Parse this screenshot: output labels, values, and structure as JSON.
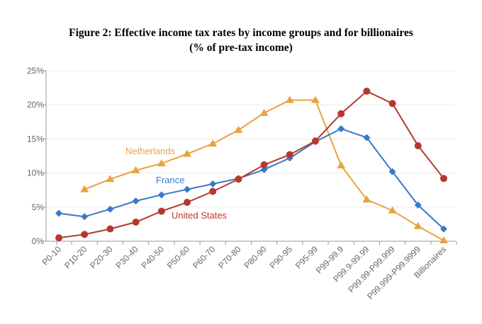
{
  "chart_data": {
    "type": "line",
    "title": "Figure 2: Effective income tax rates by income groups and for billionaires",
    "subtitle": "(% of pre-tax income)",
    "xlabel": "",
    "ylabel": "",
    "ylim": [
      0,
      25
    ],
    "yticks": [
      "0%",
      "5%",
      "10%",
      "15%",
      "20%",
      "25%"
    ],
    "grid": true,
    "legend": "inline labels",
    "categories": [
      "P0-10",
      "P10-20",
      "P20-30",
      "P30-40",
      "P40-50",
      "P50-60",
      "P60-70",
      "P70-80",
      "P80-90",
      "P90-95",
      "P95-99",
      "P99-99.9",
      "P99.9-99.99",
      "P99.99-P99.999",
      "P99.999-P99.9999",
      "Billionaires"
    ],
    "series": [
      {
        "name": "Netherlands",
        "color": "#E8A33D",
        "marker": "triangle",
        "values": [
          null,
          7.6,
          9.1,
          10.4,
          11.4,
          12.8,
          14.3,
          16.3,
          18.8,
          20.7,
          20.7,
          11.1,
          6.1,
          4.5,
          2.2,
          0.1
        ]
      },
      {
        "name": "France",
        "color": "#3A78C9",
        "marker": "diamond",
        "values": [
          4.1,
          3.6,
          4.7,
          5.9,
          6.8,
          7.6,
          8.4,
          9.2,
          10.5,
          12.2,
          14.6,
          16.5,
          15.2,
          10.2,
          5.3,
          1.8
        ]
      },
      {
        "name": "United States",
        "color": "#B5392E",
        "marker": "circle",
        "values": [
          0.5,
          1.0,
          1.8,
          2.8,
          4.4,
          5.7,
          7.3,
          9.1,
          11.2,
          12.7,
          14.7,
          18.7,
          22.0,
          20.2,
          14.0,
          9.2
        ]
      }
    ]
  }
}
